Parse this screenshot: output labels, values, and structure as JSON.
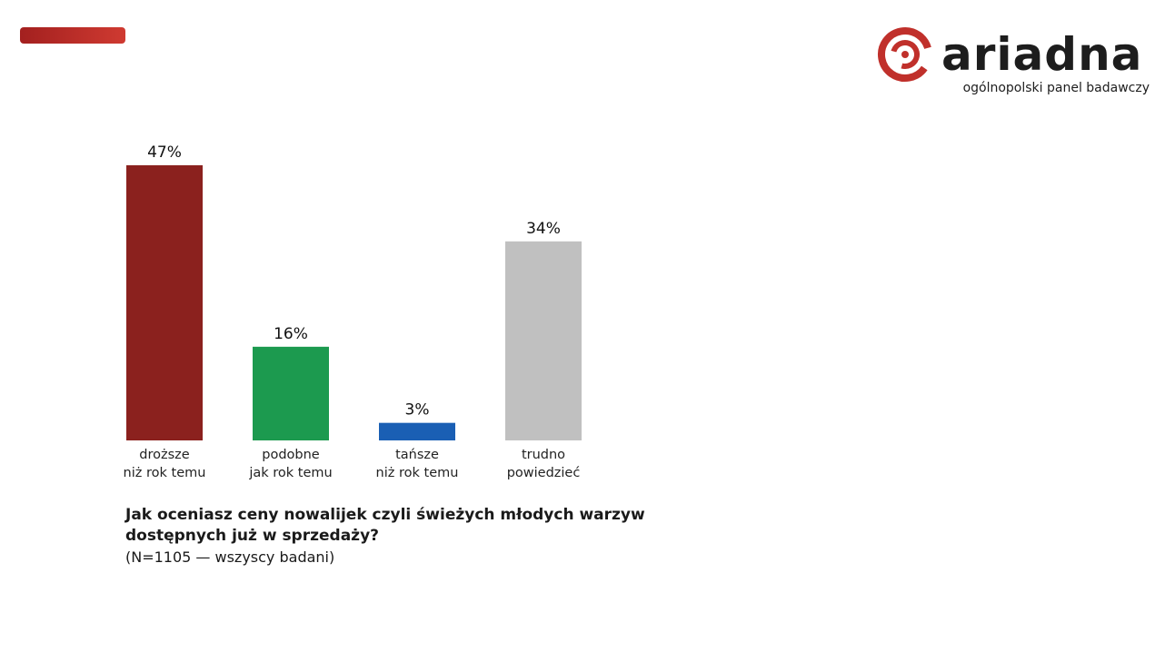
{
  "brand": {
    "name": "ariadna",
    "tagline": "ogólnopolski panel badawczy",
    "accent": "#c0302b"
  },
  "chart_data": {
    "type": "bar",
    "categories": [
      [
        "droższe",
        "niż rok temu"
      ],
      [
        "podobne",
        "jak rok temu"
      ],
      [
        "tańsze",
        "niż rok temu"
      ],
      [
        "trudno",
        "powiedzieć"
      ]
    ],
    "values": [
      47,
      16,
      3,
      34
    ],
    "value_labels": [
      "47%",
      "16%",
      "3%",
      "34%"
    ],
    "colors": [
      "#8b211e",
      "#1c9a4f",
      "#1a5fb4",
      "#c0c0c0"
    ],
    "unit": "%",
    "ylim": [
      0,
      47
    ],
    "grid": false,
    "legend": "none"
  },
  "question": {
    "title_line1": "Jak oceniasz ceny nowalijek czyli świeżych młodych warzyw",
    "title_line2": "dostępnych już w sprzedaży?",
    "note": "(N=1105 — wszyscy badani)"
  }
}
